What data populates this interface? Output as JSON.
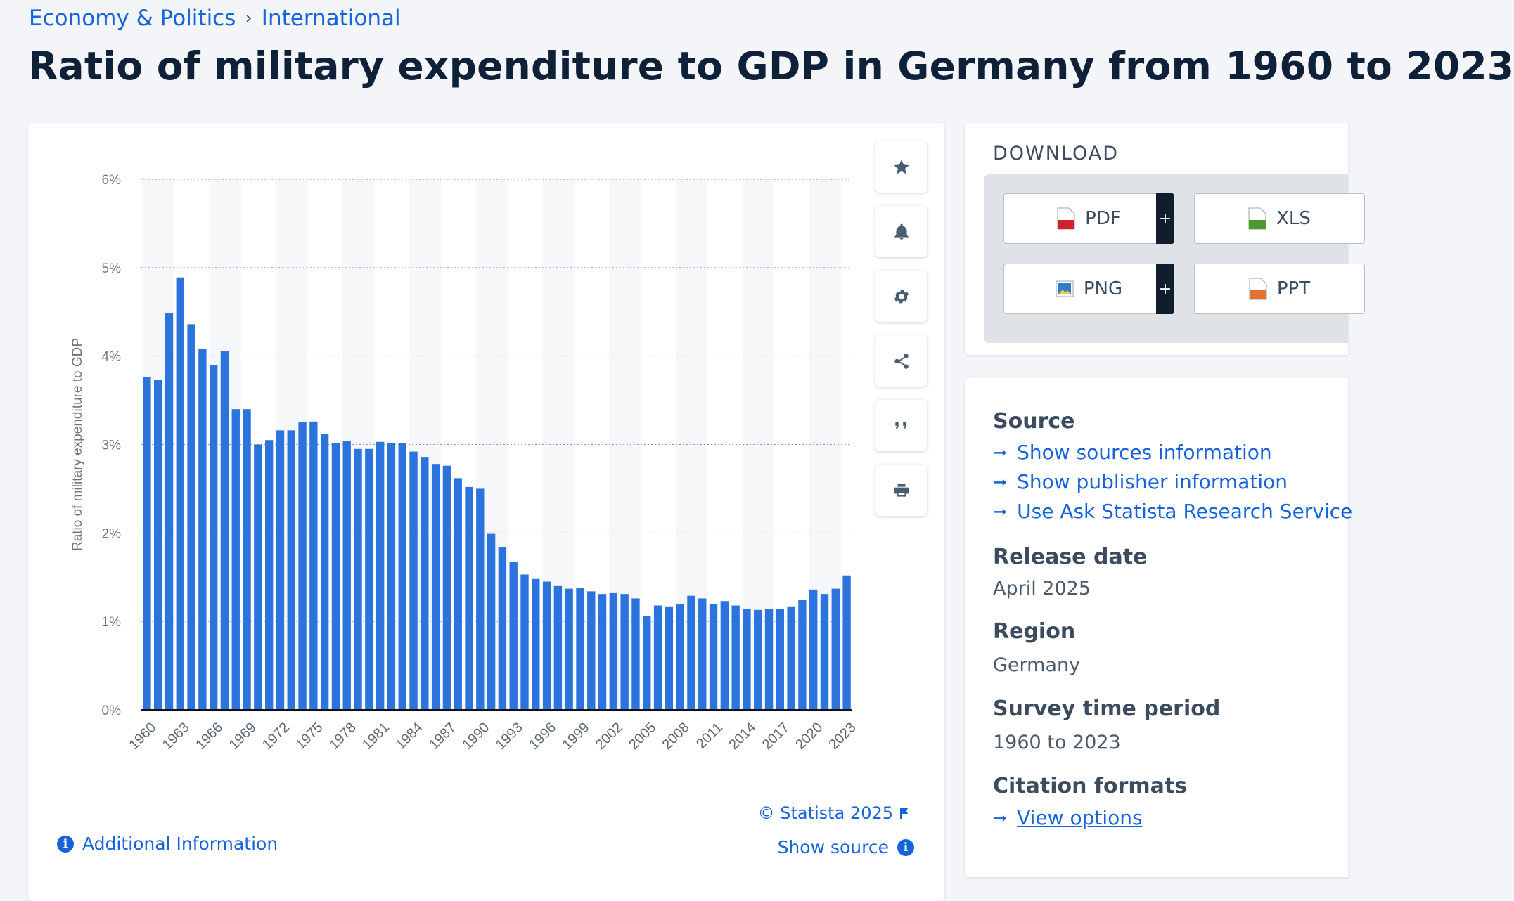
{
  "breadcrumb": {
    "level1": "Economy & Politics",
    "level2": "International"
  },
  "page_title": "Ratio of military expenditure to GDP in Germany from 1960 to 2023",
  "toolbar": [
    "star-icon",
    "bell-icon",
    "gear-icon",
    "share-icon",
    "quote-icon",
    "print-icon"
  ],
  "chart_footer": {
    "copyright": "© Statista 2025",
    "show_source": "Show source",
    "additional_info": "Additional Information"
  },
  "download": {
    "title": "DOWNLOAD",
    "buttons": [
      {
        "label": "PDF",
        "icon": "pdf-file-icon",
        "color": "#d3202c",
        "plus": "+"
      },
      {
        "label": "XLS",
        "icon": "xls-file-icon",
        "color": "#4a9a2e"
      },
      {
        "label": "PNG",
        "icon": "png-file-icon",
        "color": "#2f7fc8",
        "plus": "+"
      },
      {
        "label": "PPT",
        "icon": "ppt-file-icon",
        "color": "#e6702d"
      }
    ]
  },
  "meta": {
    "source_heading": "Source",
    "source_links": [
      "Show sources information",
      "Show publisher information",
      "Use Ask Statista Research Service"
    ],
    "release_heading": "Release date",
    "release_value": "April 2025",
    "region_heading": "Region",
    "region_value": "Germany",
    "period_heading": "Survey time period",
    "period_value": "1960 to 2023",
    "citation_heading": "Citation formats",
    "citation_link": "View options"
  },
  "colors": {
    "bar": "#2b74de",
    "link": "#1664d9",
    "title": "#0f2138"
  },
  "chart_data": {
    "type": "bar",
    "title": "",
    "xlabel": "",
    "ylabel": "Ratio of military expenditure to GDP",
    "ylim": [
      0,
      6
    ],
    "yticks": [
      "0%",
      "1%",
      "2%",
      "3%",
      "4%",
      "5%",
      "6%"
    ],
    "grid": true,
    "categories": [
      "1960",
      "1961",
      "1962",
      "1963",
      "1964",
      "1965",
      "1966",
      "1967",
      "1968",
      "1969",
      "1970",
      "1971",
      "1972",
      "1973",
      "1974",
      "1975",
      "1976",
      "1977",
      "1978",
      "1979",
      "1980",
      "1981",
      "1982",
      "1983",
      "1984",
      "1985",
      "1986",
      "1987",
      "1988",
      "1989",
      "1990",
      "1991",
      "1992",
      "1993",
      "1994",
      "1995",
      "1996",
      "1997",
      "1998",
      "1999",
      "2000",
      "2001",
      "2002",
      "2003",
      "2004",
      "2005",
      "2006",
      "2007",
      "2008",
      "2009",
      "2010",
      "2011",
      "2012",
      "2013",
      "2014",
      "2015",
      "2016",
      "2017",
      "2018",
      "2019",
      "2020",
      "2021",
      "2022",
      "2023"
    ],
    "tick_labels": [
      "1960",
      "1963",
      "1966",
      "1969",
      "1972",
      "1975",
      "1978",
      "1981",
      "1984",
      "1987",
      "1990",
      "1993",
      "1996",
      "1999",
      "2002",
      "2005",
      "2008",
      "2011",
      "2014",
      "2017",
      "2020",
      "2023"
    ],
    "values": [
      3.76,
      3.73,
      4.49,
      4.89,
      4.36,
      4.08,
      3.9,
      4.06,
      3.4,
      3.4,
      3.0,
      3.05,
      3.16,
      3.16,
      3.25,
      3.26,
      3.12,
      3.02,
      3.04,
      2.95,
      2.95,
      3.03,
      3.02,
      3.02,
      2.92,
      2.86,
      2.78,
      2.76,
      2.62,
      2.52,
      2.5,
      1.99,
      1.84,
      1.67,
      1.53,
      1.48,
      1.45,
      1.4,
      1.37,
      1.38,
      1.34,
      1.31,
      1.32,
      1.31,
      1.26,
      1.06,
      1.18,
      1.17,
      1.2,
      1.29,
      1.26,
      1.2,
      1.23,
      1.18,
      1.14,
      1.13,
      1.14,
      1.14,
      1.17,
      1.24,
      1.36,
      1.31,
      1.37,
      1.52
    ]
  }
}
